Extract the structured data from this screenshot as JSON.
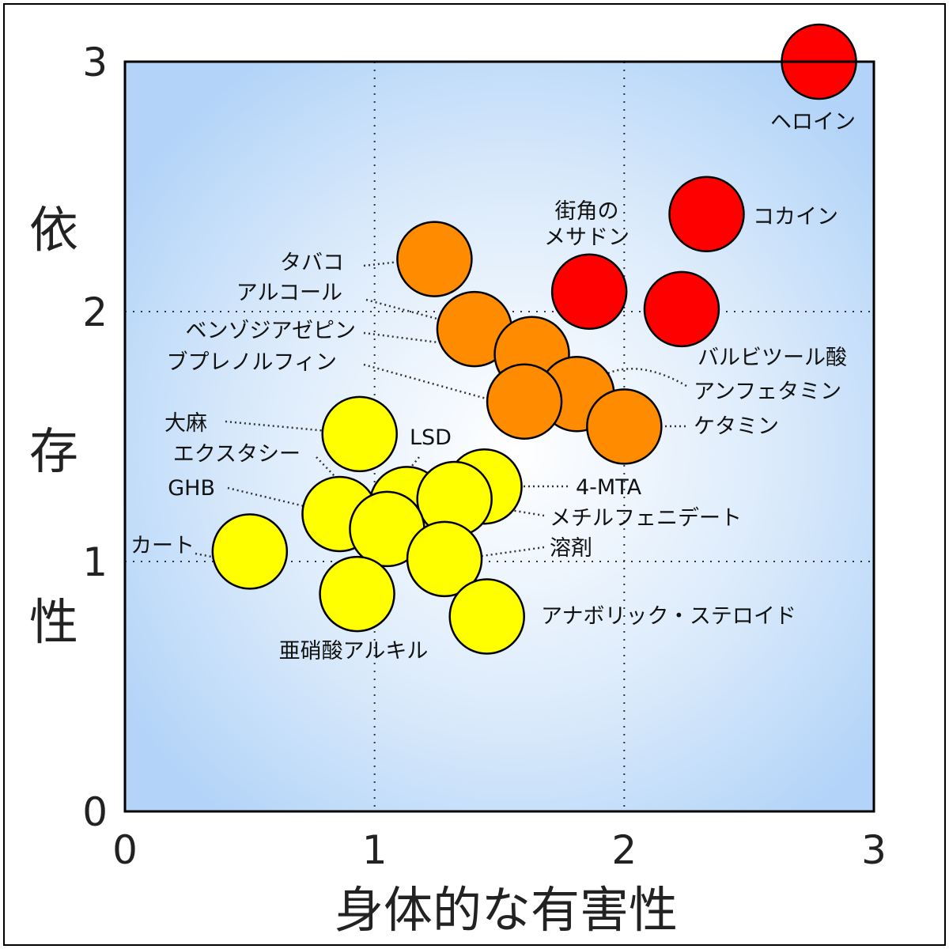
{
  "chart_data": {
    "type": "scatter",
    "title": "",
    "xlabel": "身体的な有害性",
    "ylabel": "依存性",
    "xlim": [
      0,
      3
    ],
    "ylim": [
      0,
      3
    ],
    "x_ticks": [
      "0",
      "1",
      "2",
      "3"
    ],
    "y_ticks": [
      "0",
      "1",
      "2",
      "3"
    ],
    "grid": "dotted at 1 and 2",
    "background": "radial gradient white center to light blue",
    "colors": {
      "red": "#ff0000",
      "orange": "#ff8c00",
      "yellow": "#ffff00"
    },
    "points": [
      {
        "label": "ヘロイン",
        "x": 2.78,
        "y": 3.0,
        "color": "red"
      },
      {
        "label": "コカイン",
        "x": 2.33,
        "y": 2.39,
        "color": "red"
      },
      {
        "label": "街角の\nメサドン",
        "x": 1.86,
        "y": 2.08,
        "color": "red"
      },
      {
        "label": "バルビツール酸",
        "x": 2.23,
        "y": 2.01,
        "color": "red"
      },
      {
        "label": "タバコ",
        "x": 1.24,
        "y": 2.21,
        "color": "orange"
      },
      {
        "label": "アルコール",
        "x": 1.4,
        "y": 1.93,
        "color": "orange"
      },
      {
        "label": "ベンゾジアゼピン",
        "x": 1.63,
        "y": 1.83,
        "color": "orange"
      },
      {
        "label": "アンフェタミン",
        "x": 1.81,
        "y": 1.67,
        "color": "orange"
      },
      {
        "label": "ブプレノルフィン",
        "x": 1.6,
        "y": 1.64,
        "color": "orange"
      },
      {
        "label": "ケタミン",
        "x": 2.0,
        "y": 1.54,
        "color": "orange"
      },
      {
        "label": "大麻",
        "x": 0.94,
        "y": 1.51,
        "color": "yellow"
      },
      {
        "label": "4-MTA",
        "x": 1.44,
        "y": 1.3,
        "color": "yellow"
      },
      {
        "label": "LSD",
        "x": 1.13,
        "y": 1.23,
        "color": "yellow"
      },
      {
        "label": "GHB",
        "x": 0.86,
        "y": 1.19,
        "color": "yellow"
      },
      {
        "label": "メチルフェニデート",
        "x": 1.32,
        "y": 1.25,
        "color": "yellow"
      },
      {
        "label": "エクスタシー",
        "x": 1.05,
        "y": 1.13,
        "color": "yellow"
      },
      {
        "label": "溶剤",
        "x": 1.28,
        "y": 1.01,
        "color": "yellow"
      },
      {
        "label": "カート",
        "x": 0.5,
        "y": 1.04,
        "color": "yellow"
      },
      {
        "label": "亜硝酸アルキル",
        "x": 0.93,
        "y": 0.87,
        "color": "yellow"
      },
      {
        "label": "アナボリック・ステロイド",
        "x": 1.45,
        "y": 0.78,
        "color": "yellow"
      }
    ]
  }
}
